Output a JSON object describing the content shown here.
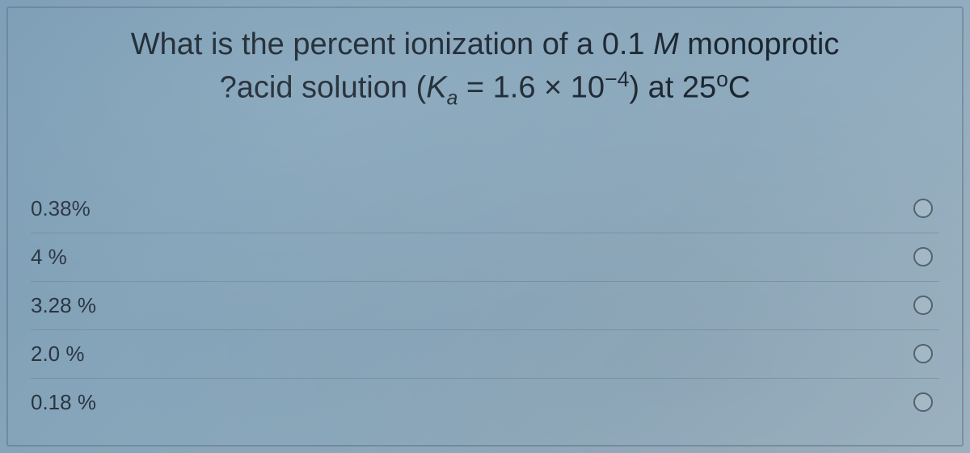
{
  "question": {
    "line1_prefix": "What is the percent ionization of a 0.1 ",
    "line1_M": "M",
    "line1_suffix": " monoprotic",
    "line2_prefix": "?acid solution (",
    "line2_K": "K",
    "line2_a": "a",
    "line2_eq": " = 1.6 × 10",
    "line2_exp": "−4",
    "line2_close": ") at 25",
    "line2_deg": "o",
    "line2_c": "C"
  },
  "options": [
    {
      "label": "0.38%"
    },
    {
      "label": "4 %"
    },
    {
      "label": "3.28 %"
    },
    {
      "label": "2.0 %"
    },
    {
      "label": "0.18 %"
    }
  ],
  "styling": {
    "background_gradient_start": "#7a9db5",
    "background_gradient_mid": "#8ba8bc",
    "background_gradient_end": "#9fb5c4",
    "question_color": "#1a2530",
    "question_fontsize": 38,
    "option_color": "#2a3540",
    "option_fontsize": 26,
    "radio_border_color": "#556570",
    "divider_color": "rgba(90,110,125,0.35)",
    "container_border_color": "rgba(80,100,115,0.4)"
  }
}
